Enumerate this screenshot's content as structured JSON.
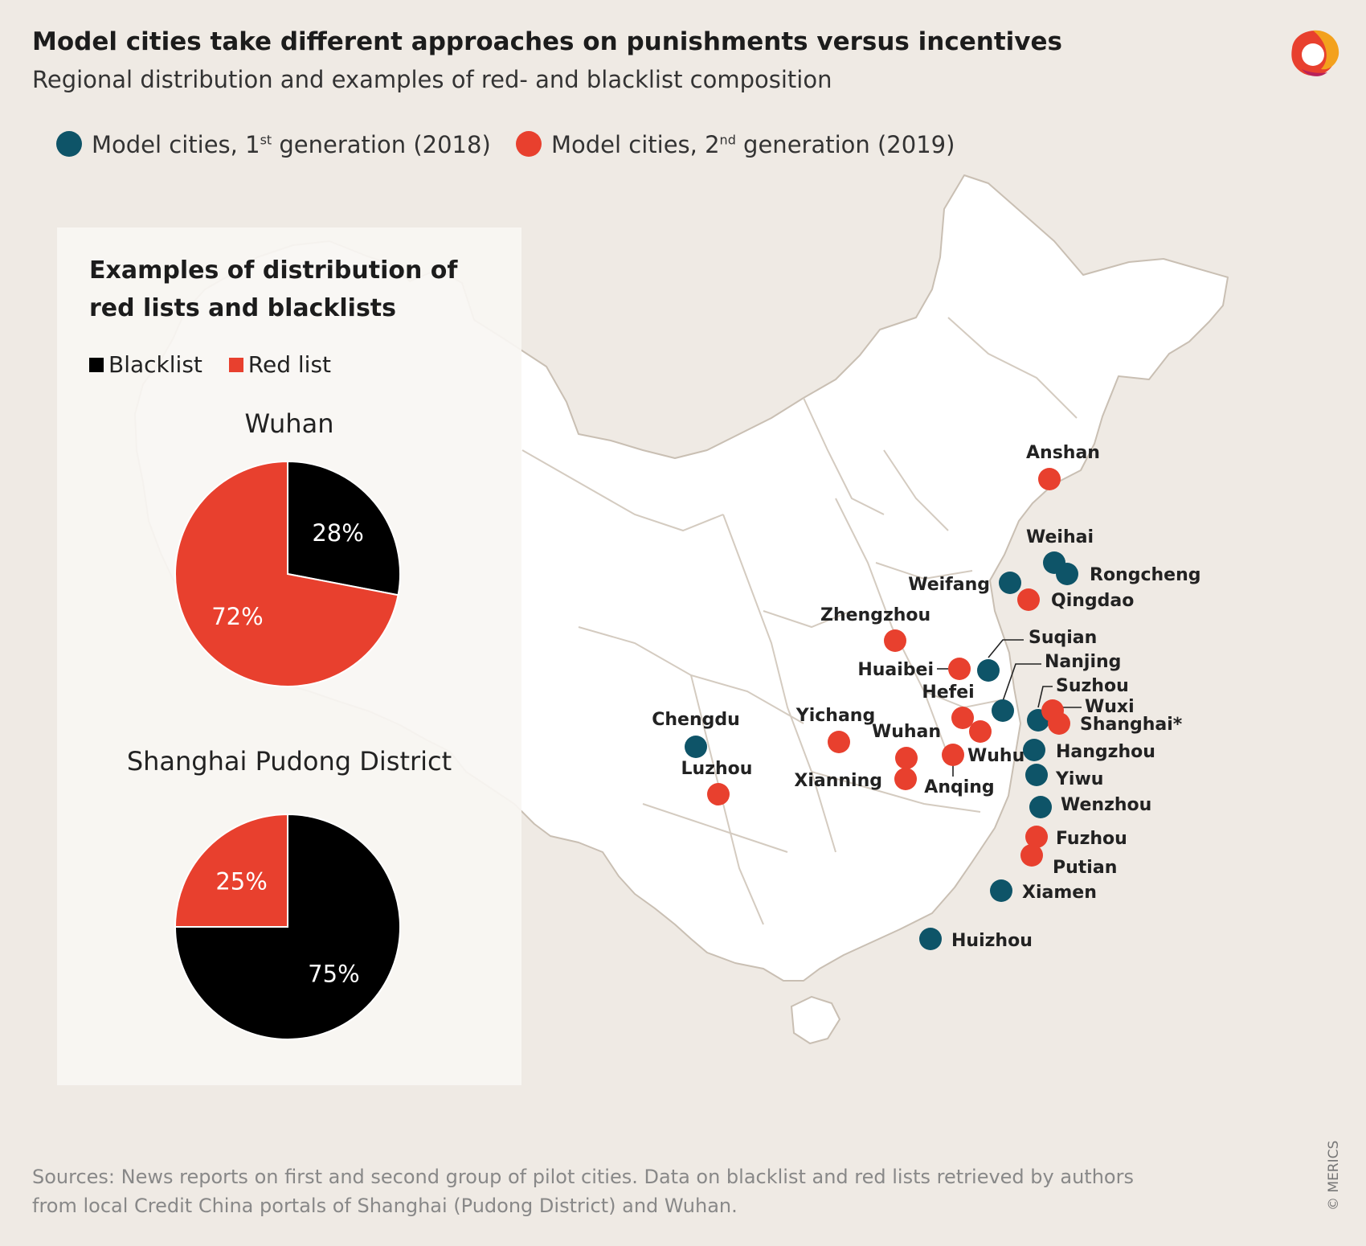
{
  "title": "Model cities take different approaches on punishments versus incentives",
  "subtitle": "Regional distribution and examples of red- and blacklist composition",
  "colors": {
    "first_generation": "#0e5468",
    "second_generation": "#e8402e",
    "blacklist": "#000000",
    "red_list": "#e8402e",
    "map_land": "#ffffff",
    "map_border": "#c9bfb3",
    "background": "#efeae4"
  },
  "legend": {
    "first": {
      "pre": "Model cities, 1",
      "sup": "st",
      "post": " generation (2018)"
    },
    "second": {
      "pre": "Model cities, 2",
      "sup": "nd",
      "post": " generation (2019)"
    }
  },
  "panel": {
    "title": "Examples of distribution of red lists and blacklists",
    "legend_blacklist": "Blacklist",
    "legend_redlist": "Red list"
  },
  "chart_data": [
    {
      "type": "pie",
      "title": "Wuhan",
      "labels": [
        "Blacklist",
        "Red list"
      ],
      "values": [
        28,
        72
      ],
      "value_labels": [
        "28%",
        "72%"
      ],
      "colors": [
        "#000000",
        "#e8402e"
      ]
    },
    {
      "type": "pie",
      "title": "Shanghai Pudong District",
      "labels": [
        "Blacklist",
        "Red list"
      ],
      "values": [
        75,
        25
      ],
      "value_labels": [
        "75%",
        "25%"
      ],
      "colors": [
        "#000000",
        "#e8402e"
      ]
    }
  ],
  "cities": [
    {
      "name": "Anshan",
      "generation": 2
    },
    {
      "name": "Weihai",
      "generation": 1
    },
    {
      "name": "Rongcheng",
      "generation": 1
    },
    {
      "name": "Weifang",
      "generation": 1
    },
    {
      "name": "Qingdao",
      "generation": 2
    },
    {
      "name": "Zhengzhou",
      "generation": 2
    },
    {
      "name": "Suqian",
      "generation": 1
    },
    {
      "name": "Huaibei",
      "generation": 2
    },
    {
      "name": "Nanjing",
      "generation": 1
    },
    {
      "name": "Suzhou",
      "generation": 1
    },
    {
      "name": "Hefei",
      "generation": 2
    },
    {
      "name": "Wuxi",
      "generation": 2
    },
    {
      "name": "Shanghai*",
      "generation": 2
    },
    {
      "name": "Chengdu",
      "generation": 1
    },
    {
      "name": "Yichang",
      "generation": 2
    },
    {
      "name": "Wuhan",
      "generation": 2
    },
    {
      "name": "Anqing",
      "generation": 2
    },
    {
      "name": "Hangzhou",
      "generation": 1
    },
    {
      "name": "Wuhu",
      "generation": 2
    },
    {
      "name": "Xianning",
      "generation": 2
    },
    {
      "name": "Luzhou",
      "generation": 2
    },
    {
      "name": "Yiwu",
      "generation": 1
    },
    {
      "name": "Wenzhou",
      "generation": 1
    },
    {
      "name": "Fuzhou",
      "generation": 2
    },
    {
      "name": "Putian",
      "generation": 2
    },
    {
      "name": "Xiamen",
      "generation": 1
    },
    {
      "name": "Huizhou",
      "generation": 1
    }
  ],
  "sources": "Sources: News reports on first and second group of pilot cities. Data on blacklist and red lists retrieved by authors from local Credit China portals of Shanghai (Pudong District) and Wuhan.",
  "copyright": "© MERICS"
}
